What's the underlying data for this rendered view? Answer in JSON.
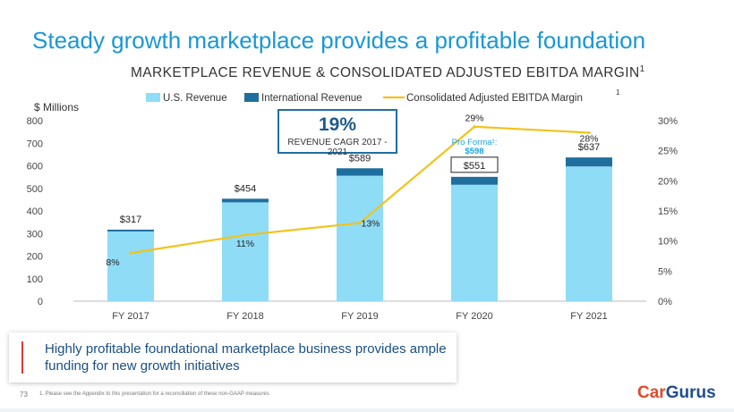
{
  "slide": {
    "title": "Steady growth marketplace provides a profitable foundation",
    "takeaway": "Highly profitable foundational marketplace business provides ample funding for new growth initiatives",
    "page_number": "73",
    "footnote": "1. Please see the Appendix to this presentation for a reconciliation of these non-GAAP measures",
    "logo": {
      "part1": "Car",
      "part2": "Gurus"
    }
  },
  "callout": {
    "value": "19%",
    "label": "REVENUE CAGR 2017 - 2021"
  },
  "colors": {
    "us_revenue": "#8fdcf7",
    "international_revenue": "#1f6f9e",
    "ebitda_margin": "#f2c31b",
    "title": "#1a97d6",
    "pro_forma": "#1aa3e0"
  },
  "chart_data": {
    "type": "bar",
    "stacked": true,
    "title": "MARKETPLACE REVENUE & CONSOLIDATED ADJUSTED EBITDA MARGIN",
    "title_superscript": "1",
    "ylabel": "$ Millions",
    "ylim": [
      0,
      800
    ],
    "yticks": [
      "0",
      "100",
      "200",
      "300",
      "400",
      "500",
      "600",
      "700",
      "800"
    ],
    "y2lim": [
      0,
      30
    ],
    "y2ticks": [
      "0%",
      "5%",
      "10%",
      "15%",
      "20%",
      "25%",
      "30%"
    ],
    "categories": [
      "FY 2017",
      "FY 2018",
      "FY 2019",
      "FY 2020",
      "FY 2021"
    ],
    "series": [
      {
        "name": "U.S. Revenue",
        "kind": "bar",
        "values": [
          309,
          438,
          556,
          516,
          597
        ]
      },
      {
        "name": "International Revenue",
        "kind": "bar",
        "values": [
          8,
          16,
          33,
          35,
          40
        ]
      },
      {
        "name": "Consolidated Adjusted EBITDA Margin",
        "name_superscript": "1",
        "kind": "line",
        "axis": "right",
        "values": [
          8,
          11,
          13,
          29,
          28
        ]
      }
    ],
    "total_labels": [
      "$317",
      "$454",
      "$589",
      "$551",
      "$637"
    ],
    "margin_labels": [
      "8%",
      "11%",
      "13%",
      "29%",
      "28%"
    ],
    "pro_forma": {
      "label": "Pro Forma¹:",
      "value": "$598",
      "category": "FY 2020"
    }
  }
}
